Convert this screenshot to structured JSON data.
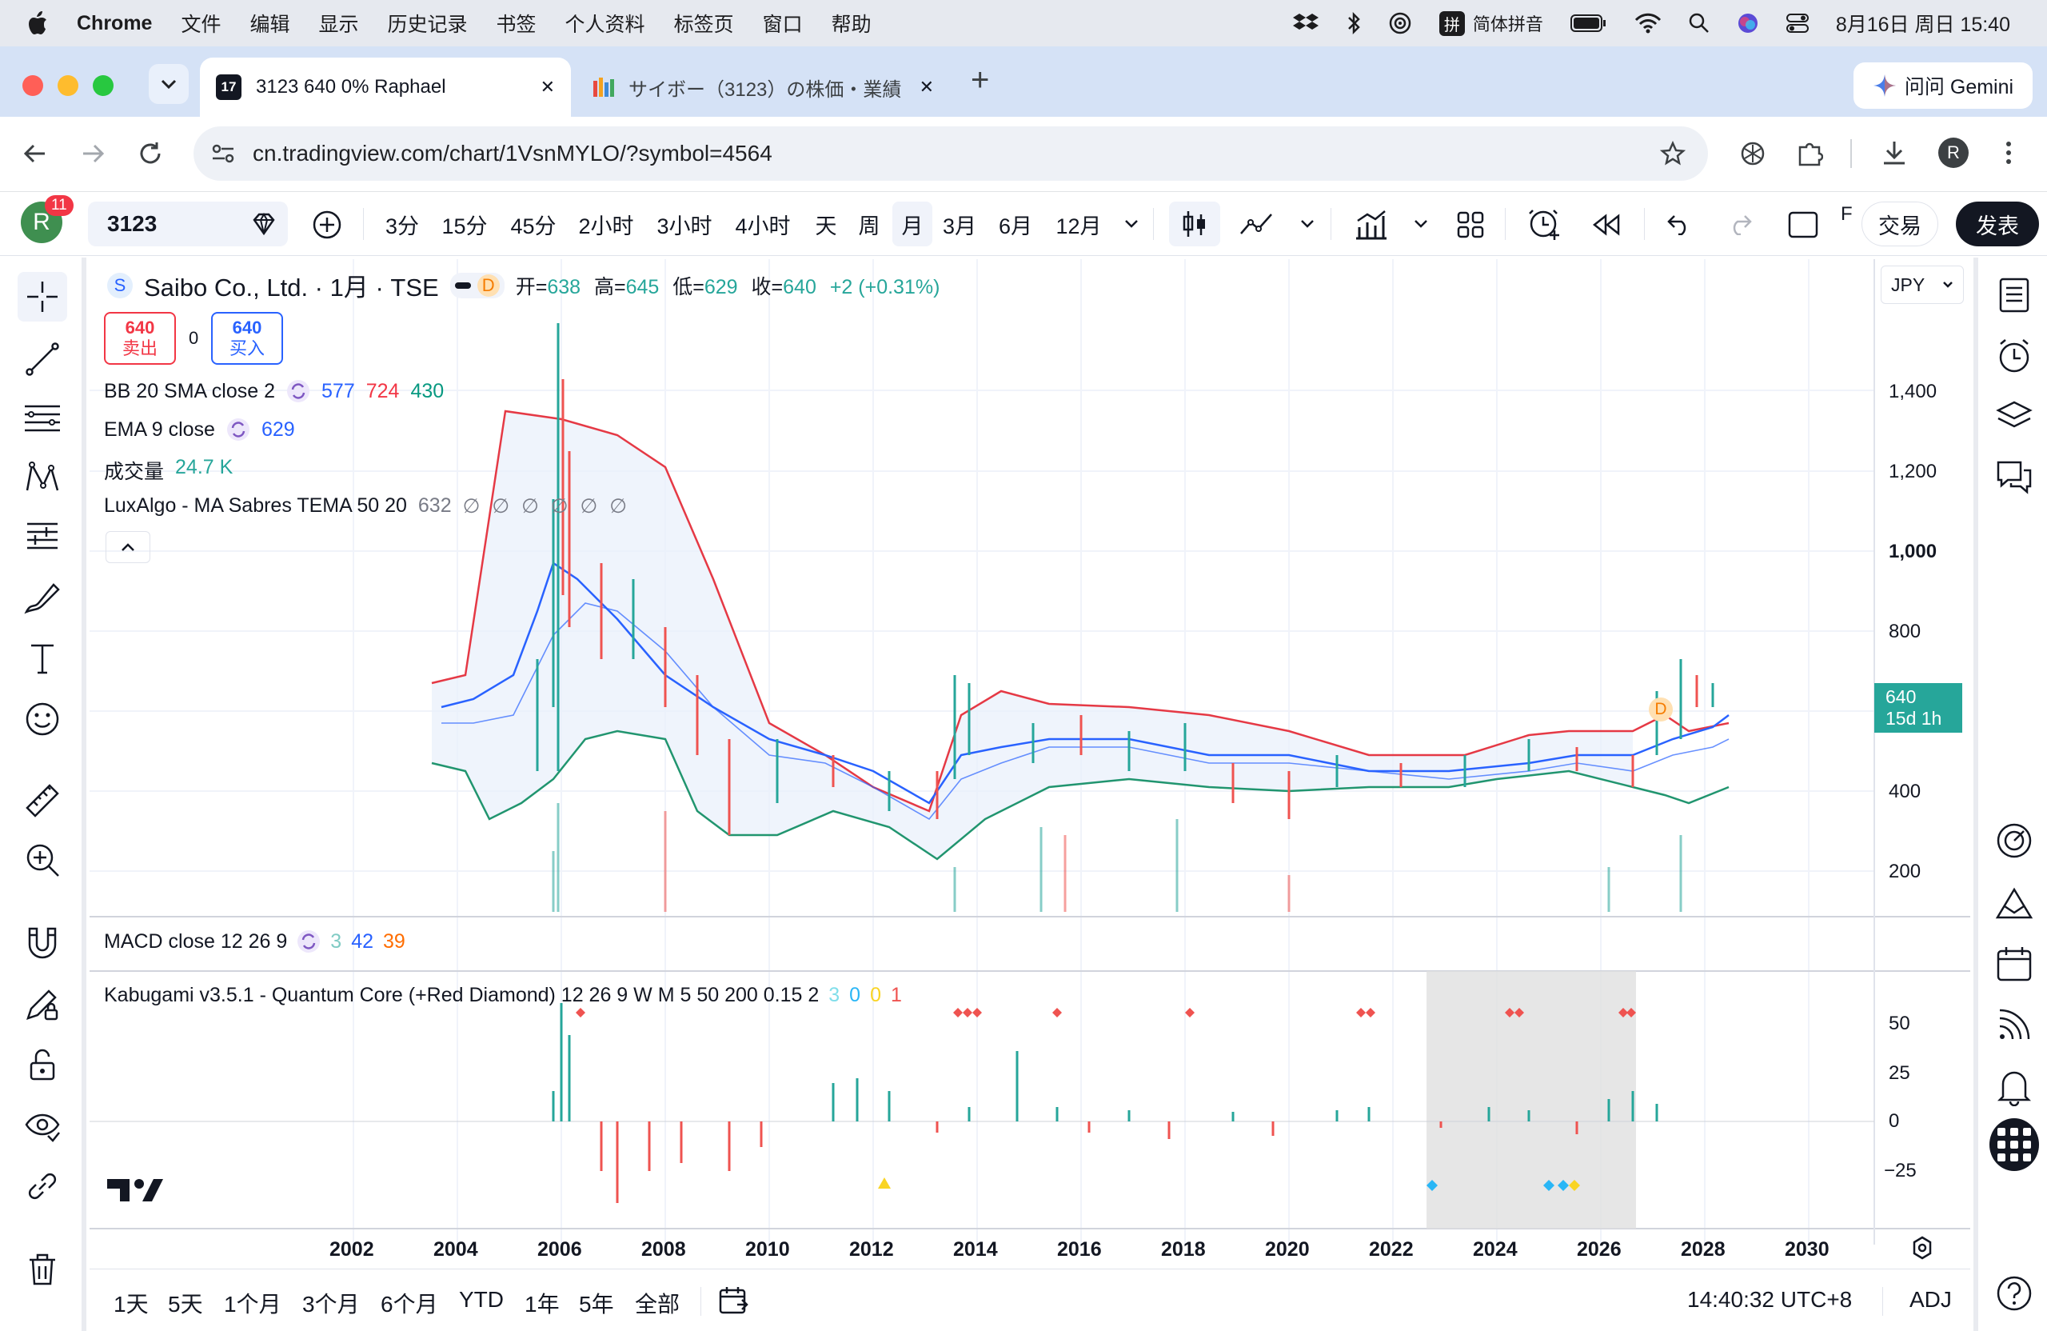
{
  "menubar": {
    "app": "Chrome",
    "menus": [
      "文件",
      "编辑",
      "显示",
      "历史记录",
      "书签",
      "个人资料",
      "标签页",
      "窗口",
      "帮助"
    ],
    "input_method": "简体拼音",
    "clock": "8月16日 周日 15:40"
  },
  "browser": {
    "tabs": [
      {
        "title": "3123 640 0% Raphael",
        "close": "✕"
      },
      {
        "title": "サイボー（3123）の株価・業績",
        "close": "✕"
      }
    ],
    "new_tab": "+",
    "gemini": "问问 Gemini",
    "url": "cn.tradingview.com/chart/1VsnMYLO/?symbol=4564",
    "profile_initial": "R"
  },
  "tv_toolbar": {
    "avatar": "R",
    "notif_badge": "11",
    "symbol": "3123",
    "intervals": [
      "3分",
      "15分",
      "45分",
      "2小时",
      "3小时",
      "4小时",
      "天",
      "周",
      "月",
      "3月",
      "6月",
      "12月"
    ],
    "active_interval": "月",
    "f_label": "F",
    "trade": "交易",
    "publish": "发表"
  },
  "legend": {
    "title": "Saibo Co., Ltd. · 1月 · TSE",
    "logo_letter": "S",
    "badge": "D",
    "ohlc": {
      "o_label": "开=",
      "o": "638",
      "h_label": "高=",
      "h": "645",
      "l_label": "低=",
      "l": "629",
      "c_label": "收=",
      "c": "640",
      "chg": "+2 (+0.31%)"
    },
    "sell": {
      "price": "640",
      "label": "卖出"
    },
    "spread": "0",
    "buy": {
      "price": "640",
      "label": "买入"
    },
    "bb": {
      "name": "BB 20 SMA close 2",
      "v1": "577",
      "v2": "724",
      "v3": "430"
    },
    "ema": {
      "name": "EMA 9 close",
      "v": "629"
    },
    "vol": {
      "name": "成交量",
      "v": "24.7 K"
    },
    "lux": {
      "name": "LuxAlgo - MA Sabres TEMA 50 20",
      "v": "632",
      "marks": "∅ ∅ ∅ ∅ ∅ ∅"
    },
    "collapse": "^"
  },
  "price_scale": {
    "currency": "JPY",
    "labels": [
      "1,400",
      "1,200",
      "1,000",
      "800",
      "400",
      "200"
    ],
    "last_price": "640",
    "countdown": "15d 1h",
    "d_marker": "D"
  },
  "macd": {
    "name": "MACD close 12 26 9",
    "v1": "3",
    "v2": "42",
    "v3": "39"
  },
  "kabu": {
    "name": "Kabugami v3.5.1 - Quantum Core (+Red Diamond) 12 26 9 W M 5 50 200 0.15 2",
    "v1": "3",
    "v2": "0",
    "v3": "0",
    "v4": "1",
    "scale": [
      "50",
      "25",
      "0",
      "−25"
    ]
  },
  "time_axis": [
    "2002",
    "2004",
    "2006",
    "2008",
    "2010",
    "2012",
    "2014",
    "2016",
    "2018",
    "2020",
    "2022",
    "2024",
    "2026",
    "2028",
    "2030"
  ],
  "bottom": {
    "ranges": [
      "1天",
      "5天",
      "1个月",
      "3个月",
      "6个月",
      "YTD",
      "1年",
      "5年",
      "全部"
    ],
    "clock": "14:40:32 UTC+8",
    "adj": "ADJ"
  },
  "colors": {
    "up": "#26a69a",
    "down": "#ef5350",
    "bb_upper": "#e53945",
    "bb_lower": "#21956f",
    "ema": "#2962ff",
    "accent": "#2962ff"
  }
}
